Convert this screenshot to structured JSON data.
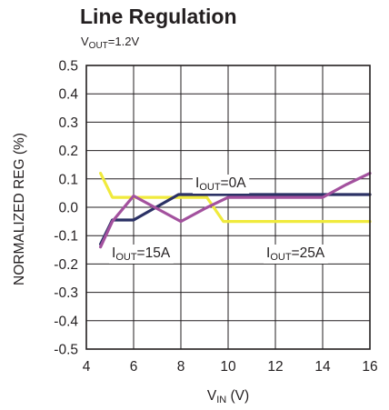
{
  "chart_data": {
    "type": "line",
    "title": "Line Regulation",
    "subtitle": {
      "base": "V",
      "sub": "OUT",
      "rest": "=1.2V"
    },
    "xlabel": {
      "base": "V",
      "sub": "IN",
      "rest": " (V)"
    },
    "ylabel": "NORMALIZED REG (%)",
    "xlim": [
      4,
      16
    ],
    "ylim": [
      -0.5,
      0.5
    ],
    "xticks": [
      "4",
      "6",
      "8",
      "10",
      "12",
      "14",
      "16"
    ],
    "yticks": [
      "0.5",
      "0.4",
      "0.3",
      "0.2",
      "0.1",
      "0.0",
      "-0.1",
      "-0.2",
      "-0.3",
      "-0.4",
      "-0.5"
    ],
    "grid": true,
    "series": [
      {
        "name": {
          "base": "I",
          "sub": "OUT",
          "rest": "=25A"
        },
        "color": "#f0ea3c",
        "x": [
          4.6,
          5.1,
          6,
          9.1,
          9.8,
          10,
          12,
          14,
          16
        ],
        "y": [
          0.12,
          0.035,
          0.035,
          0.035,
          -0.05,
          -0.05,
          -0.05,
          -0.05,
          -0.05
        ]
      },
      {
        "name": {
          "base": "I",
          "sub": "OUT",
          "rest": "=0A"
        },
        "color": "#2b3165",
        "x": [
          4.6,
          5.1,
          6,
          7.9,
          9,
          10,
          12,
          14,
          16
        ],
        "y": [
          -0.13,
          -0.045,
          -0.045,
          0.045,
          0.045,
          0.045,
          0.045,
          0.045,
          0.045
        ]
      },
      {
        "name": {
          "base": "I",
          "sub": "OUT",
          "rest": "=15A"
        },
        "color": "#a3519e",
        "x": [
          4.6,
          5.1,
          6,
          8,
          9,
          10,
          12,
          14,
          15,
          16
        ],
        "y": [
          -0.14,
          -0.05,
          0.04,
          -0.05,
          -0.005,
          0.035,
          0.035,
          0.035,
          0.08,
          0.12
        ]
      }
    ],
    "annotations": [
      {
        "series": 1,
        "base": "I",
        "sub": "OUT",
        "rest": "=0A"
      },
      {
        "series": 2,
        "base": "I",
        "sub": "OUT",
        "rest": "=15A"
      },
      {
        "series": 0,
        "base": "I",
        "sub": "OUT",
        "rest": "=25A"
      }
    ]
  }
}
